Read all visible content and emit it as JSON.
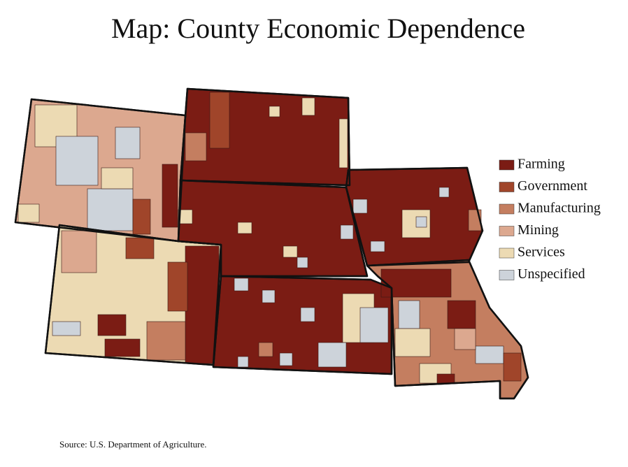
{
  "title": "Map: County Economic Dependence",
  "legend": [
    {
      "label": "Farming",
      "color": "#7b1c14"
    },
    {
      "label": "Government",
      "color": "#a0452a"
    },
    {
      "label": "Manufacturing",
      "color": "#c47e60"
    },
    {
      "label": "Mining",
      "color": "#dca88f"
    },
    {
      "label": "Services",
      "color": "#ecdab3"
    },
    {
      "label": "Unspecified",
      "color": "#cdd3da"
    }
  ],
  "source": "Source: U.S. Department of Agriculture."
}
